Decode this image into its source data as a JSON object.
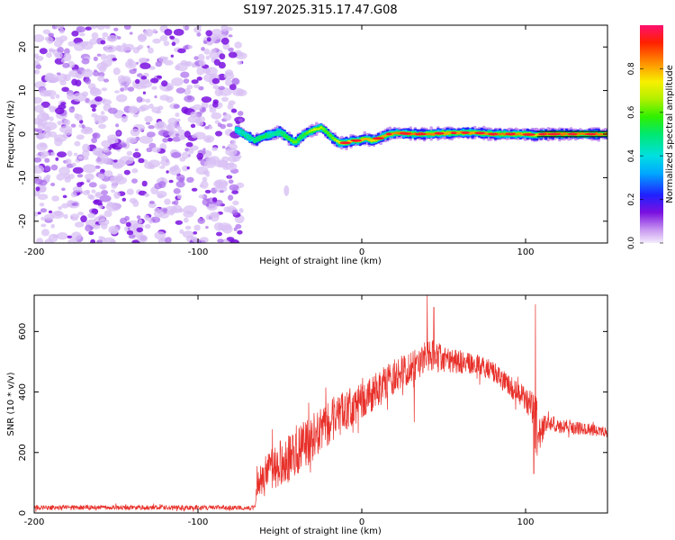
{
  "title": "S197.2025.315.17.47.G08",
  "colors": {
    "snr_line": "#e8302a",
    "ridge_line": "#000000",
    "speckle_light": "#d8c0f4",
    "speckle_dark": "#7a10e0"
  },
  "chart_data": [
    {
      "type": "heatmap",
      "name": "spectrogram",
      "xlabel": "Height of straight line (km)",
      "ylabel": "Frequency (Hz)",
      "xlim": [
        -200,
        150
      ],
      "ylim": [
        -25,
        25
      ],
      "xticks": [
        -200,
        -100,
        0,
        100
      ],
      "yticks": [
        20,
        10,
        0,
        -10,
        -20
      ],
      "noise_region_x": [
        -200,
        -75
      ],
      "ridge": {
        "x": [
          -77,
          -72,
          -66,
          -60,
          -55,
          -50,
          -45,
          -41,
          -37,
          -33,
          -29,
          -25,
          -22,
          -18,
          -14,
          -10,
          -6,
          -2,
          2,
          6,
          10,
          16,
          22,
          30,
          40,
          50,
          60,
          70,
          80,
          90,
          100,
          106,
          110,
          130,
          150
        ],
        "y": [
          1,
          0,
          -1.5,
          -0.5,
          0,
          0.5,
          -1,
          -2,
          -0.5,
          0.5,
          1,
          1.5,
          0.5,
          -1,
          -2,
          -2,
          -1.5,
          -1.5,
          -1,
          -1.5,
          -1,
          0,
          0.3,
          0,
          0,
          0.2,
          0.3,
          0.3,
          0,
          0,
          0,
          -0.3,
          0,
          0,
          0
        ],
        "amplitude": [
          0.45,
          0.5,
          0.55,
          0.6,
          0.5,
          0.55,
          0.65,
          0.7,
          0.6,
          0.7,
          0.8,
          0.75,
          0.65,
          0.7,
          0.8,
          0.85,
          0.8,
          0.85,
          0.9,
          0.85,
          0.9,
          0.92,
          0.95,
          0.95,
          0.95,
          0.9,
          0.92,
          0.9,
          0.95,
          0.95,
          0.9,
          0.85,
          0.95,
          0.95,
          0.95
        ]
      },
      "overlay_line": {
        "x": [
          107,
          150
        ],
        "y": [
          0,
          0
        ]
      }
    },
    {
      "type": "colorbar",
      "name": "amplitude-colorbar",
      "label": "Normalized spectral amplitude",
      "range": [
        0,
        1
      ],
      "ticks": [
        0.0,
        0.2,
        0.4,
        0.6,
        0.8
      ],
      "tick_labels": [
        "0.0",
        "0.2",
        "0.4",
        "0.6",
        "0.8"
      ]
    },
    {
      "type": "line",
      "name": "snr",
      "xlabel": "Height of straight line (km)",
      "ylabel": "SNR (10 * v/v)",
      "xlim": [
        -200,
        150
      ],
      "ylim": [
        0,
        720
      ],
      "xticks": [
        -200,
        -100,
        0,
        100
      ],
      "yticks": [
        0,
        200,
        400,
        600
      ],
      "envelope": {
        "x": [
          -200,
          -65,
          -64,
          -60,
          -50,
          -40,
          -30,
          -20,
          -10,
          0,
          10,
          20,
          30,
          40,
          50,
          60,
          70,
          80,
          90,
          100,
          104,
          106,
          108,
          112,
          120,
          130,
          140,
          150
        ],
        "mean": [
          18,
          18,
          110,
          120,
          160,
          200,
          250,
          300,
          340,
          370,
          410,
          450,
          490,
          520,
          510,
          500,
          490,
          470,
          420,
          380,
          340,
          300,
          260,
          300,
          290,
          280,
          275,
          270
        ],
        "spread": [
          8,
          8,
          50,
          70,
          80,
          80,
          80,
          75,
          70,
          60,
          60,
          60,
          60,
          60,
          45,
          40,
          35,
          35,
          35,
          40,
          60,
          100,
          80,
          30,
          25,
          22,
          20,
          20
        ]
      },
      "spikes": [
        {
          "x": -60,
          "y": 150
        },
        {
          "x": -40,
          "y": 290
        },
        {
          "x": -18,
          "y": 370
        },
        {
          "x": 30,
          "y": 530
        },
        {
          "x": 32,
          "y": 300
        },
        {
          "x": 40,
          "y": 720
        },
        {
          "x": 44,
          "y": 680
        },
        {
          "x": 106,
          "y": 690
        },
        {
          "x": 105,
          "y": 130
        }
      ]
    }
  ]
}
